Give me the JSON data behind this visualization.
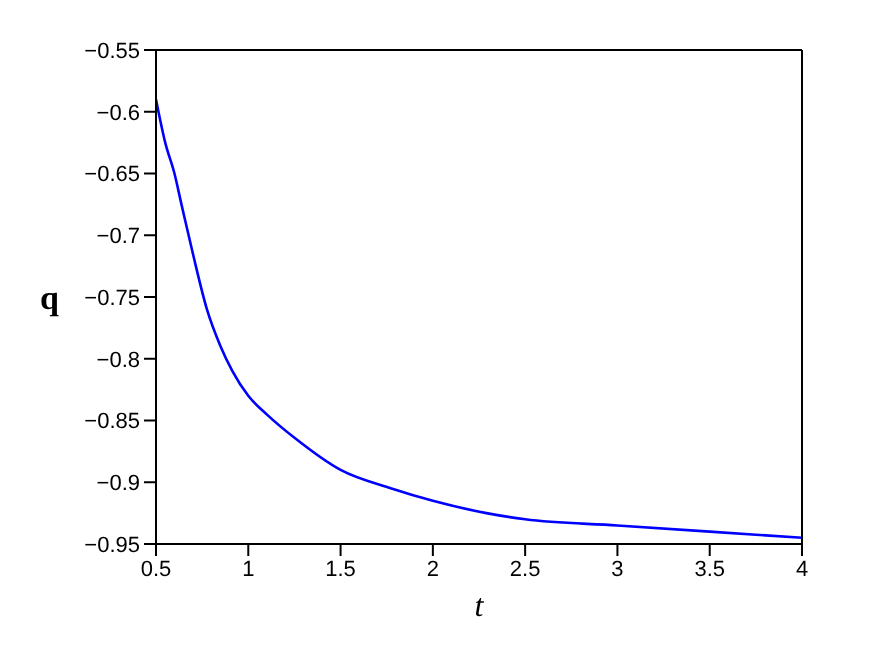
{
  "chart_data": {
    "type": "line",
    "xlabel": "t",
    "ylabel": "q",
    "series": [
      {
        "color": "#0000ff",
        "x": [
          0.5,
          0.55,
          0.6,
          0.638,
          0.7,
          0.776,
          0.85,
          0.914,
          1.0,
          1.1,
          1.259,
          1.5,
          1.776,
          2.0,
          2.29,
          2.5,
          3.0,
          3.5,
          4.0
        ],
        "values": [
          -0.59,
          -0.625,
          -0.65,
          -0.675,
          -0.715,
          -0.76,
          -0.79,
          -0.81,
          -0.83,
          -0.845,
          -0.865,
          -0.89,
          -0.905,
          -0.915,
          -0.925,
          -0.93,
          -0.935,
          -0.94,
          -0.945
        ]
      }
    ],
    "xlim": [
      0.5,
      4
    ],
    "xticks": [
      0.5,
      1,
      1.5,
      2,
      2.5,
      3,
      3.5,
      4
    ],
    "ylim": [
      -0.95,
      -0.55
    ],
    "yticks": [
      -0.95,
      -0.9,
      -0.85,
      -0.8,
      -0.75,
      -0.7,
      -0.65,
      -0.6,
      -0.55
    ],
    "grid": false,
    "marker": "none",
    "line_style": "solid"
  }
}
